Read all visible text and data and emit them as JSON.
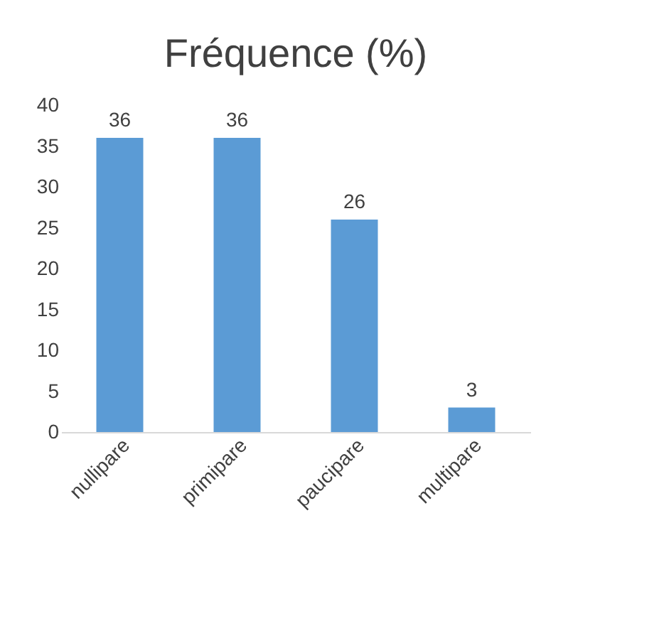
{
  "chart_data": {
    "type": "bar",
    "title": "Fréquence  (%)",
    "categories": [
      "nullipare",
      "primipare",
      "paucipare",
      "multipare"
    ],
    "values": [
      36,
      36,
      26,
      3
    ],
    "color": "#5b9bd5",
    "ylim": [
      0,
      40
    ],
    "yticks": [
      0,
      5,
      10,
      15,
      20,
      25,
      30,
      35,
      40
    ],
    "grid": false,
    "data_labels": true
  }
}
